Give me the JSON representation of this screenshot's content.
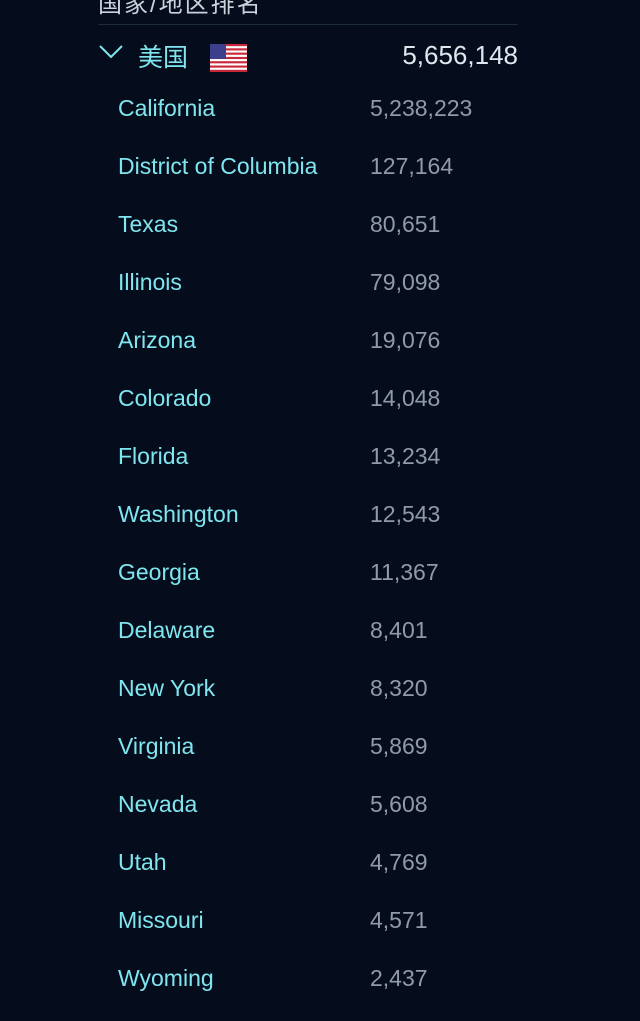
{
  "header": {
    "title": "国家/地区排名"
  },
  "group": {
    "country": "美国",
    "total": "5,656,148",
    "rows": [
      [
        "California",
        "5,238,223"
      ],
      [
        "District of Columbia",
        "127,164"
      ],
      [
        "Texas",
        "80,651"
      ],
      [
        "Illinois",
        "79,098"
      ],
      [
        "Arizona",
        "19,076"
      ],
      [
        "Colorado",
        "14,048"
      ],
      [
        "Florida",
        "13,234"
      ],
      [
        "Washington",
        "12,543"
      ],
      [
        "Georgia",
        "11,367"
      ],
      [
        "Delaware",
        "8,401"
      ],
      [
        "New York",
        "8,320"
      ],
      [
        "Virginia",
        "5,869"
      ],
      [
        "Nevada",
        "5,608"
      ],
      [
        "Utah",
        "4,769"
      ],
      [
        "Missouri",
        "4,571"
      ],
      [
        "Wyoming",
        "2,437"
      ]
    ]
  }
}
